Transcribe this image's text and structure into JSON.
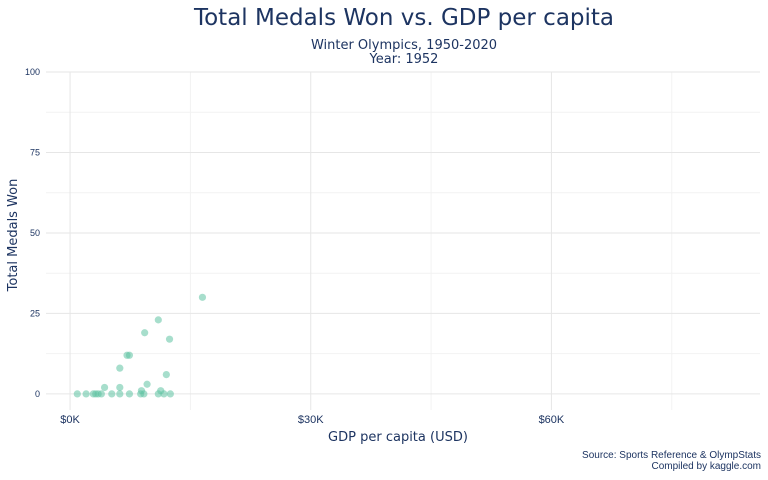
{
  "chart_data": {
    "type": "scatter",
    "title": "Total Medals Won vs. GDP per capita",
    "subtitle": "Winter Olympics, 1950-2020",
    "subtitle2": "Year: 1952",
    "xlabel": "GDP  per  capita  (USD)",
    "ylabel": "Total Medals Won",
    "caption_line1": "Source: Sports Reference & OlympStats",
    "caption_line2": "Compiled by kaggle.com",
    "xlim": [
      -3000,
      86000
    ],
    "ylim": [
      -5,
      100
    ],
    "x_ticks": [
      {
        "value": 0,
        "label": "$0K"
      },
      {
        "value": 30000,
        "label": "$30K"
      },
      {
        "value": 60000,
        "label": "$60K"
      }
    ],
    "y_ticks": [
      {
        "value": 0,
        "label": "0"
      },
      {
        "value": 25,
        "label": "25"
      },
      {
        "value": 50,
        "label": "50"
      },
      {
        "value": 75,
        "label": "75"
      },
      {
        "value": 100,
        "label": "100"
      }
    ],
    "grid": true,
    "point_color": "#5fc2a3",
    "points": [
      {
        "x": 900,
        "y": 0
      },
      {
        "x": 2000,
        "y": 0
      },
      {
        "x": 2900,
        "y": 0
      },
      {
        "x": 3200,
        "y": 0
      },
      {
        "x": 3500,
        "y": 0
      },
      {
        "x": 3900,
        "y": 0
      },
      {
        "x": 4300,
        "y": 2
      },
      {
        "x": 5200,
        "y": 0
      },
      {
        "x": 6200,
        "y": 0
      },
      {
        "x": 6200,
        "y": 2
      },
      {
        "x": 6200,
        "y": 8
      },
      {
        "x": 7100,
        "y": 12
      },
      {
        "x": 7400,
        "y": 12
      },
      {
        "x": 7400,
        "y": 0
      },
      {
        "x": 8800,
        "y": 0
      },
      {
        "x": 8900,
        "y": 1
      },
      {
        "x": 9200,
        "y": 0
      },
      {
        "x": 9300,
        "y": 19
      },
      {
        "x": 9600,
        "y": 3
      },
      {
        "x": 11000,
        "y": 23
      },
      {
        "x": 11000,
        "y": 0
      },
      {
        "x": 11300,
        "y": 1
      },
      {
        "x": 11700,
        "y": 0
      },
      {
        "x": 12000,
        "y": 6
      },
      {
        "x": 12400,
        "y": 17
      },
      {
        "x": 12500,
        "y": 0
      },
      {
        "x": 16500,
        "y": 30
      }
    ]
  }
}
